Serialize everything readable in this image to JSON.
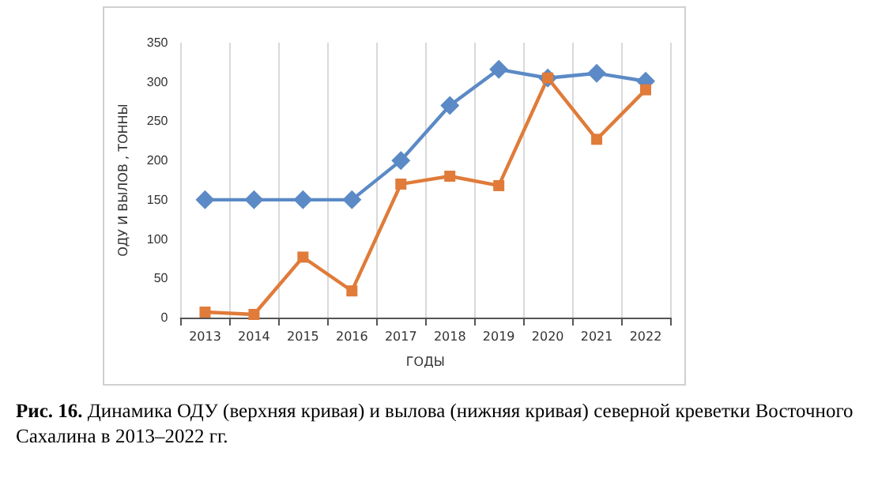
{
  "chart_data": {
    "type": "line",
    "xlabel": "ГОДЫ",
    "ylabel": "ОДУ И ВЫЛОВ , ТОННЫ",
    "categories": [
      "2013",
      "2014",
      "2015",
      "2016",
      "2017",
      "2018",
      "2019",
      "2020",
      "2021",
      "2022"
    ],
    "series": [
      {
        "color": "#5b8ac6",
        "marker": "diamond",
        "values": [
          150,
          150,
          150,
          150,
          200,
          270,
          316,
          305,
          311,
          301
        ]
      },
      {
        "color": "#e07b39",
        "marker": "square",
        "values": [
          7,
          4,
          77,
          34,
          170,
          180,
          168,
          305,
          227,
          290
        ]
      }
    ],
    "ylim": [
      0,
      350
    ],
    "yticks": [
      0,
      50,
      100,
      150,
      200,
      250,
      300,
      350
    ],
    "grid": "x",
    "annotations": [
      "Рис. 16.",
      "Динамика ОДУ (верхняя кривая) и вылова (нижняя кривая) северной креветки Восточного Сахалина в 2013–2022 гг."
    ]
  }
}
